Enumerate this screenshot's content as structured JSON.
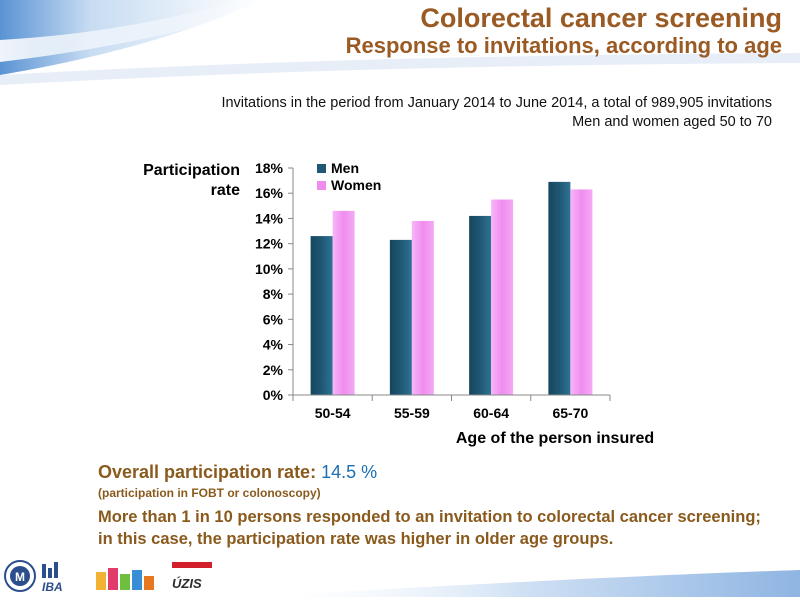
{
  "slide": {
    "title": "Colorectal cancer screening",
    "subtitle_title": "Response to invitations, according to age",
    "info_line1": "Invitations in the period from January 2014 to June 2014, a total of 989,905 invitations",
    "info_line2": "Men and women aged 50 to 70"
  },
  "summary": {
    "rate_label": "Overall participation rate:",
    "rate_value": "14.5 %",
    "note": "(participation in FOBT or colonoscopy)",
    "conclusion": "More than 1 in 10 persons responded to an invitation to colorectal cancer screening; in this case, the participation rate was higher in older age groups."
  },
  "logos": {
    "iba": "IBA",
    "uzis": "ÚZIS"
  },
  "colors": {
    "title_brown": "#9a5a23",
    "men": "#1f5874",
    "women": "#f08cf0",
    "value_blue": "#1a6fb5"
  },
  "chart_data": {
    "type": "bar",
    "title": "",
    "ylabel_line1": "Participation",
    "ylabel_line2": "rate",
    "xlabel": "Age of the person insured",
    "categories": [
      "50-54",
      "55-59",
      "60-64",
      "65-70"
    ],
    "series": [
      {
        "name": "Men",
        "values": [
          12.6,
          12.3,
          14.2,
          16.9
        ]
      },
      {
        "name": "Women",
        "values": [
          14.6,
          13.8,
          15.5,
          16.3
        ]
      }
    ],
    "ylim": [
      0,
      18
    ],
    "yticks": [
      "0%",
      "2%",
      "4%",
      "6%",
      "8%",
      "10%",
      "12%",
      "14%",
      "16%",
      "18%"
    ],
    "legend_position": "top-left",
    "grid": false
  }
}
